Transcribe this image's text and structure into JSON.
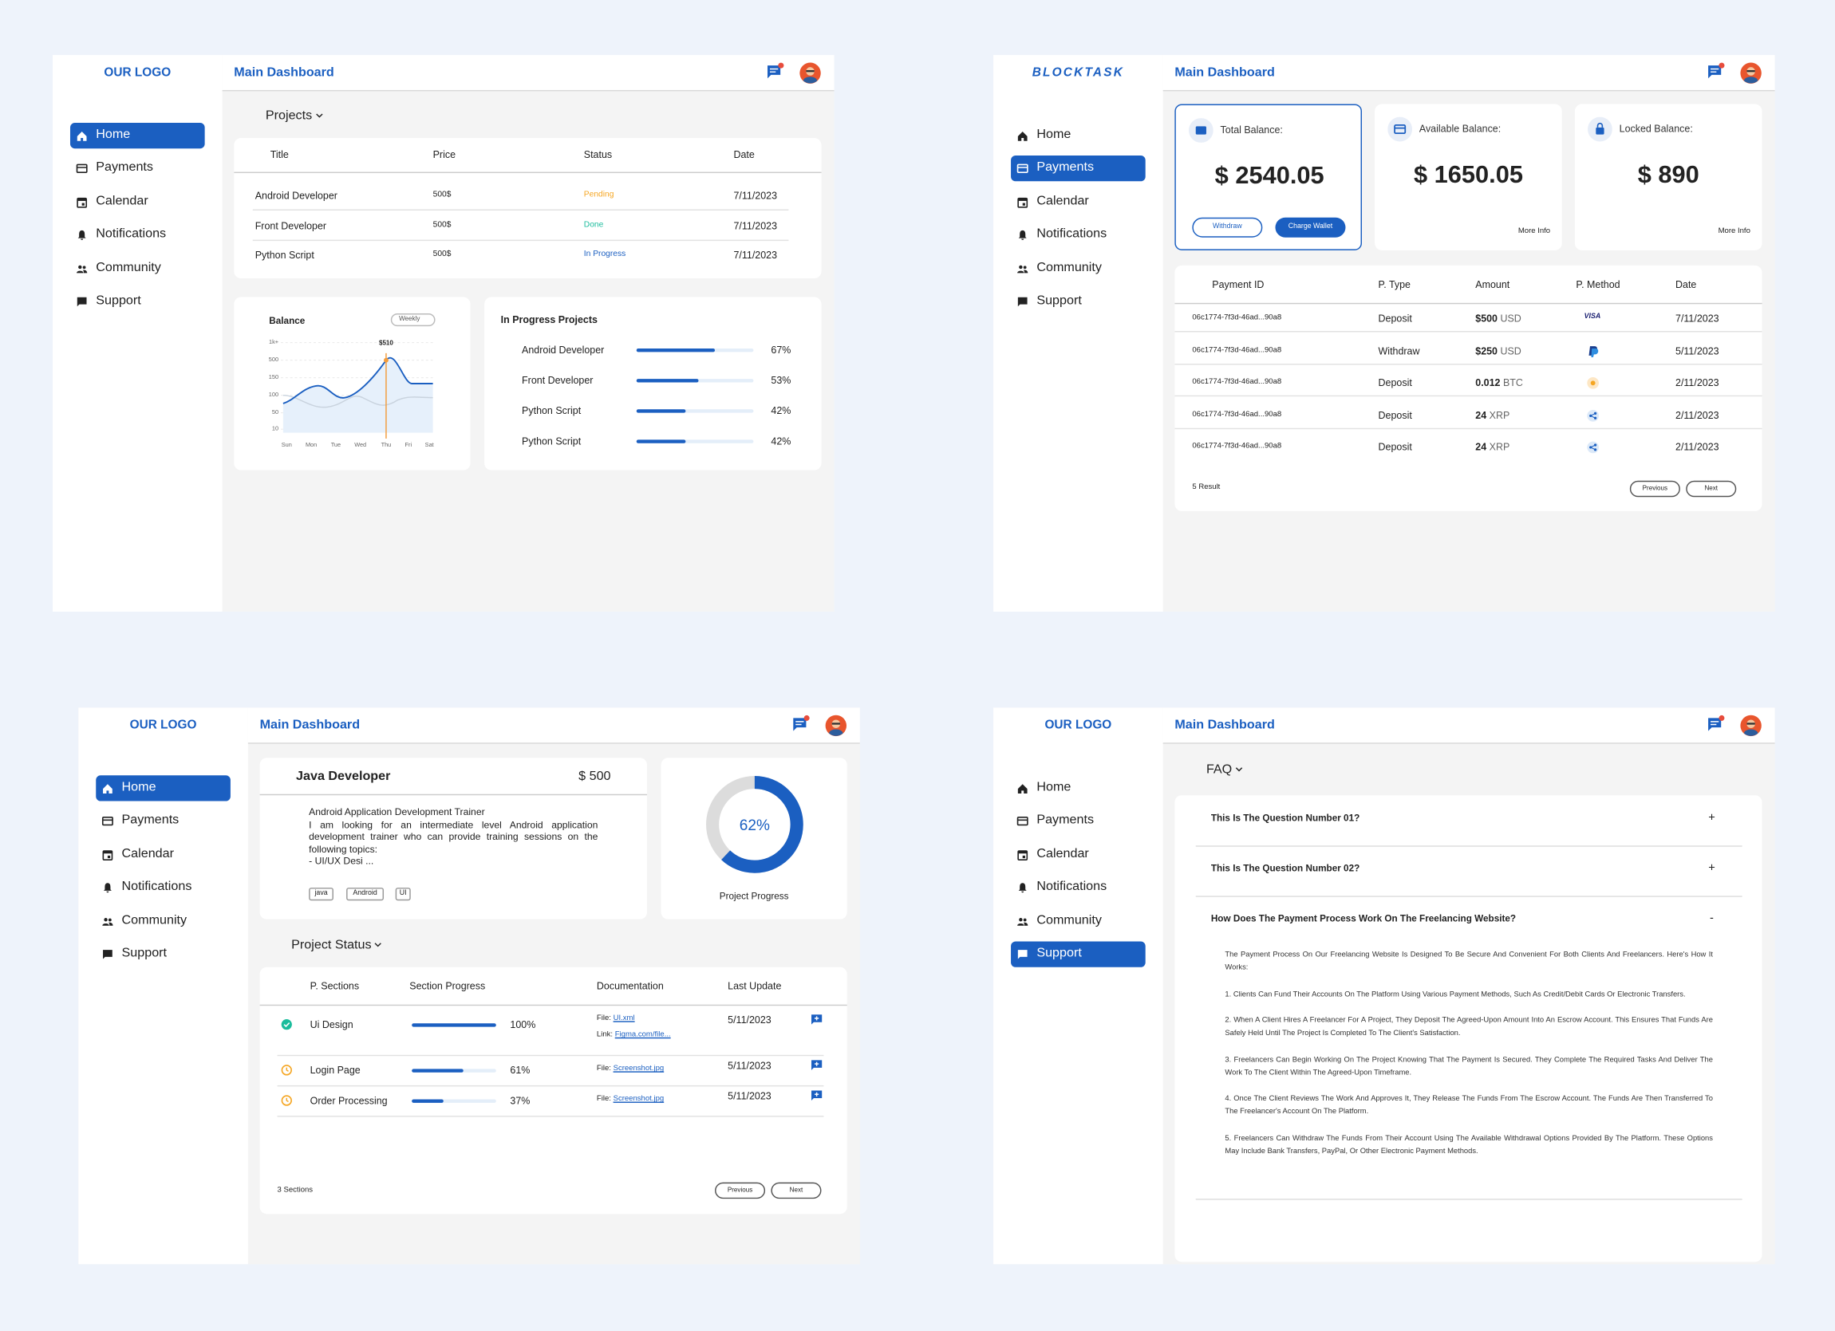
{
  "panels": [
    {
      "logo": "OUR LOGO",
      "header_title": "Main Dashboard",
      "nav": [
        {
          "label": "Home",
          "active": true
        },
        {
          "label": "Payments",
          "active": false
        },
        {
          "label": "Calendar",
          "active": false
        },
        {
          "label": "Notifications",
          "active": false
        },
        {
          "label": "Community",
          "active": false
        },
        {
          "label": "Support",
          "active": false
        }
      ],
      "projects": {
        "title": "Projects",
        "columns": [
          "Title",
          "Price",
          "Status",
          "Date"
        ],
        "rows": [
          {
            "title": "Android Developer",
            "price": "500$",
            "status": "Pending",
            "status_color": "#f5a623",
            "date": "7/11/2023"
          },
          {
            "title": "Front Developer",
            "price": "500$",
            "status": "Done",
            "status_color": "#1abc9c",
            "date": "7/11/2023"
          },
          {
            "title": "Python Script",
            "price": "500$",
            "status": "In Progress",
            "status_color": "#1b5fc1",
            "date": "7/11/2023"
          }
        ]
      },
      "balance": {
        "title": "Balance",
        "filter": "Weekly",
        "y_labels": [
          "1k+",
          "500",
          "150",
          "100",
          "50",
          "10"
        ],
        "x_labels": [
          "Sun",
          "Mon",
          "Tue",
          "Wed",
          "Thu",
          "Fri",
          "Sat"
        ],
        "peak_label": "$510"
      },
      "in_progress": {
        "title": "In Progress Projects",
        "items": [
          {
            "name": "Android Developer",
            "value": 67,
            "label": "67%"
          },
          {
            "name": "Front Developer",
            "value": 53,
            "label": "53%"
          },
          {
            "name": "Python Script",
            "value": 42,
            "label": "42%"
          },
          {
            "name": "Python Script",
            "value": 42,
            "label": "42%"
          }
        ]
      }
    },
    {
      "logo": "BLOCKTASK",
      "header_title": "Main Dashboard",
      "nav": [
        {
          "label": "Home",
          "active": false
        },
        {
          "label": "Payments",
          "active": true
        },
        {
          "label": "Calendar",
          "active": false
        },
        {
          "label": "Notifications",
          "active": false
        },
        {
          "label": "Community",
          "active": false
        },
        {
          "label": "Support",
          "active": false
        }
      ],
      "balances": [
        {
          "label": "Total Balance:",
          "amount": "$ 2540.05",
          "buttons": [
            "Withdraw",
            "Charge Wallet"
          ]
        },
        {
          "label": "Available Balance:",
          "amount": "$ 1650.05",
          "link": "More Info"
        },
        {
          "label": "Locked Balance:",
          "amount": "$ 890",
          "link": "More Info"
        }
      ],
      "payments": {
        "columns": [
          "Payment ID",
          "P. Type",
          "Amount",
          "P. Method",
          "Date"
        ],
        "rows": [
          {
            "id": "06c1774-7f3d-46ad...90a8",
            "type": "Deposit",
            "amount": "$500",
            "unit": "USD",
            "method": "VISA",
            "date": "7/11/2023"
          },
          {
            "id": "06c1774-7f3d-46ad...90a8",
            "type": "Withdraw",
            "amount": "$250",
            "unit": "USD",
            "date": "5/11/2023"
          },
          {
            "id": "06c1774-7f3d-46ad...90a8",
            "type": "Deposit",
            "amount": "0.012",
            "unit": "BTC",
            "date": "2/11/2023"
          },
          {
            "id": "06c1774-7f3d-46ad...90a8",
            "type": "Deposit",
            "amount": "24",
            "unit": "XRP",
            "date": "2/11/2023"
          },
          {
            "id": "06c1774-7f3d-46ad...90a8",
            "type": "Deposit",
            "amount": "24",
            "unit": "XRP",
            "date": "2/11/2023"
          }
        ],
        "result": "5 Result",
        "prev": "Previous",
        "next": "Next"
      }
    },
    {
      "logo": "OUR LOGO",
      "header_title": "Main Dashboard",
      "nav": [
        {
          "label": "Home",
          "active": true
        },
        {
          "label": "Payments",
          "active": false
        },
        {
          "label": "Calendar",
          "active": false
        },
        {
          "label": "Notifications",
          "active": false
        },
        {
          "label": "Community",
          "active": false
        },
        {
          "label": "Support",
          "active": false
        }
      ],
      "job": {
        "title": "Java Developer",
        "price": "$ 500",
        "description": [
          "Android Application Development Trainer",
          "I am looking for an intermediate level Android application development trainer who can provide training sessions on the following topics:",
          "- UI/UX Desi ..."
        ],
        "tags": [
          "java",
          "Android",
          "UI"
        ]
      },
      "progress": {
        "value": 62,
        "label": "62%",
        "caption": "Project Progress"
      },
      "status": {
        "title": "Project Status",
        "columns": [
          "P. Sections",
          "Section Progress",
          "Documentation",
          "Last Update"
        ],
        "rows": [
          {
            "section": "Ui Design",
            "value": 100,
            "label": "100%",
            "docs": [
              {
                "key": "File:",
                "link": "UI.xml"
              },
              {
                "key": "Link:",
                "link": "Figma.com/file..."
              }
            ],
            "date": "5/11/2023"
          },
          {
            "section": "Login Page",
            "value": 61,
            "label": "61%",
            "docs": [
              {
                "key": "File:",
                "link": "Screenshot.jpg"
              }
            ],
            "date": "5/11/2023"
          },
          {
            "section": "Order Processing",
            "value": 37,
            "label": "37%",
            "docs": [
              {
                "key": "File:",
                "link": "Screenshot.jpg"
              }
            ],
            "date": "5/11/2023"
          }
        ],
        "count": "3 Sections",
        "prev": "Previous",
        "next": "Next"
      }
    },
    {
      "logo": "OUR LOGO",
      "header_title": "Main Dashboard",
      "nav": [
        {
          "label": "Home",
          "active": false
        },
        {
          "label": "Payments",
          "active": false
        },
        {
          "label": "Calendar",
          "active": false
        },
        {
          "label": "Notifications",
          "active": false
        },
        {
          "label": "Community",
          "active": false
        },
        {
          "label": "Support",
          "active": true
        }
      ],
      "faq": {
        "title": "FAQ",
        "items": [
          {
            "question": "This Is The Question Number 01?",
            "toggle": "+"
          },
          {
            "question": "This Is The Question Number 02?",
            "toggle": "+"
          },
          {
            "question": "How Does The Payment Process Work On The Freelancing Website?",
            "toggle": "-",
            "answer": [
              "The Payment Process On Our Freelancing Website Is Designed To Be Secure And Convenient For Both Clients And Freelancers. Here's How It Works:",
              "1. Clients Can Fund Their Accounts On The Platform Using Various Payment Methods, Such As Credit/Debit Cards Or Electronic Transfers.",
              "2. When A Client Hires A Freelancer For A Project, They Deposit The Agreed-Upon Amount Into An Escrow Account. This Ensures That Funds Are Safely Held Until The Project Is Completed To The Client's Satisfaction.",
              "3. Freelancers Can Begin Working On The Project Knowing That The Payment Is Secured. They Complete The Required Tasks And Deliver The Work To The Client Within The Agreed-Upon Timeframe.",
              "4. Once The Client Reviews The Work And Approves It, They Release The Funds From The Escrow Account. The Funds Are Then Transferred To The Freelancer's Account On The Platform.",
              "5. Freelancers Can Withdraw The Funds From Their Account Using The Available Withdrawal Options Provided By The Platform. These Options May Include Bank Transfers, PayPal, Or Other Electronic Payment Methods."
            ]
          }
        ]
      }
    }
  ]
}
